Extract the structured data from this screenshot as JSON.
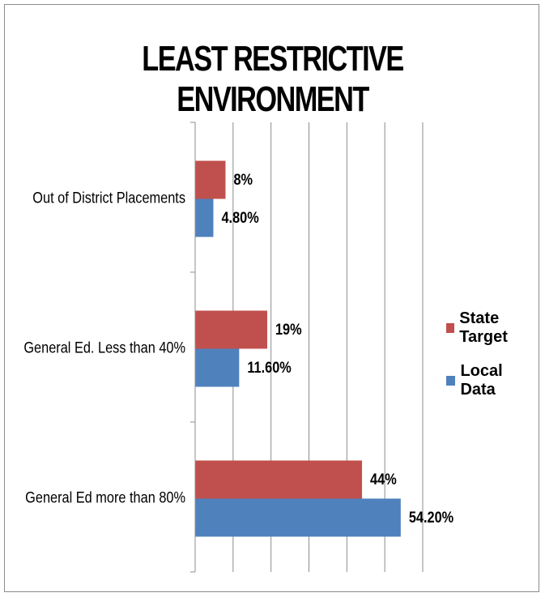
{
  "chart_data": {
    "type": "bar",
    "orientation": "horizontal",
    "title": "LEAST RESTRICTIVE ENVIRONMENT",
    "categories": [
      "Out of District Placements",
      "General Ed. Less than 40%",
      "General Ed more than 80%"
    ],
    "series": [
      {
        "name": "State Target",
        "color": "#c0504d",
        "values": [
          8,
          19,
          44
        ],
        "labels": [
          "8%",
          "19%",
          "44%"
        ]
      },
      {
        "name": "Local Data",
        "color": "#4f81bd",
        "values": [
          4.8,
          11.6,
          54.2
        ],
        "labels": [
          "4.80%",
          "11.60%",
          "54.20%"
        ]
      }
    ],
    "xlim": [
      0,
      60
    ],
    "grid": true,
    "legend_position": "right"
  }
}
